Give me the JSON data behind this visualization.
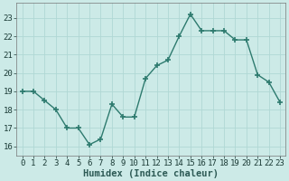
{
  "x": [
    0,
    1,
    2,
    3,
    4,
    5,
    6,
    7,
    8,
    9,
    10,
    11,
    12,
    13,
    14,
    15,
    16,
    17,
    18,
    19,
    20,
    21,
    22,
    23
  ],
  "y": [
    19.0,
    19.0,
    18.5,
    18.0,
    17.0,
    17.0,
    16.1,
    16.4,
    18.3,
    17.6,
    17.6,
    19.7,
    20.4,
    20.7,
    22.0,
    23.2,
    22.3,
    22.3,
    22.3,
    21.8,
    21.8,
    19.9,
    19.5,
    18.4
  ],
  "line_color": "#2d7a6e",
  "marker": "+",
  "marker_size": 4,
  "marker_color": "#2d7a6e",
  "bg_color": "#cceae7",
  "grid_color": "#b0d8d4",
  "xlabel": "Humidex (Indice chaleur)",
  "ylim": [
    15.5,
    23.8
  ],
  "xlim": [
    -0.5,
    23.5
  ],
  "yticks": [
    16,
    17,
    18,
    19,
    20,
    21,
    22,
    23
  ],
  "xticks": [
    0,
    1,
    2,
    3,
    4,
    5,
    6,
    7,
    8,
    9,
    10,
    11,
    12,
    13,
    14,
    15,
    16,
    17,
    18,
    19,
    20,
    21,
    22,
    23
  ],
  "tick_fontsize": 6.5,
  "xlabel_fontsize": 7.5,
  "line_width": 1.0,
  "marker_edge_width": 1.2
}
